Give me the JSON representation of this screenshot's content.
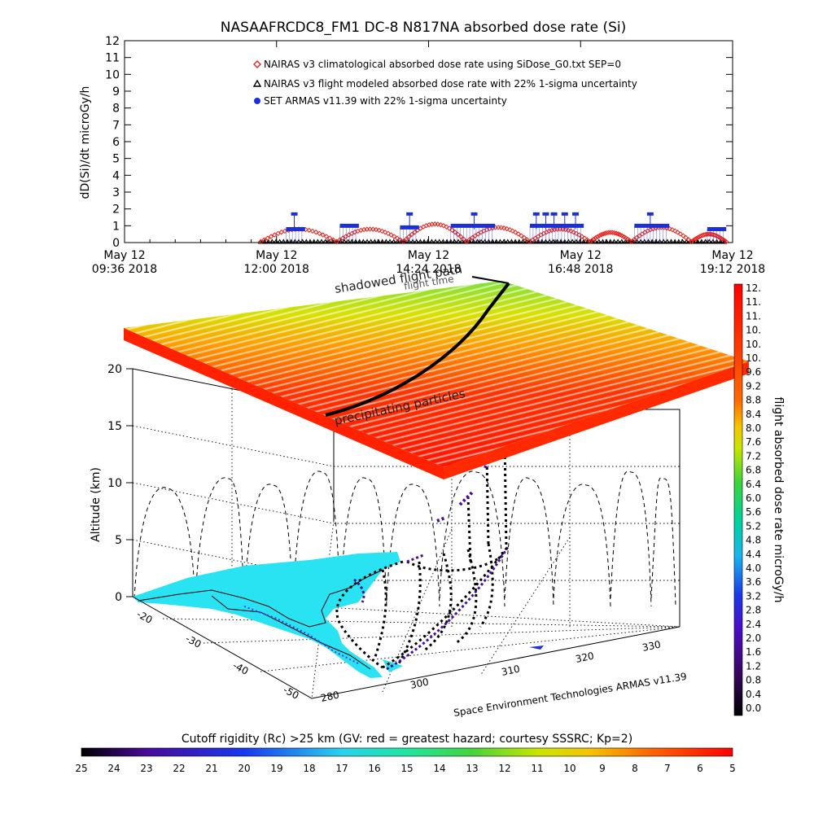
{
  "chart_data": [
    {
      "type": "scatter",
      "title": "NASAAFRCDC8_FM1 DC-8    N817NA absorbed dose rate (Si)",
      "ylabel": "dD(Si)/dt microGy/h",
      "ylim": [
        0,
        12
      ],
      "y_ticks": [
        "0",
        "1",
        "2",
        "3",
        "4",
        "5",
        "6",
        "7",
        "8",
        "9",
        "10",
        "11",
        "12"
      ],
      "x_ticks": [
        {
          "day": "May 12",
          "time": "09:36 2018",
          "h": 9.6
        },
        {
          "day": "May 12",
          "time": "12:00 2018",
          "h": 12.0
        },
        {
          "day": "May 12",
          "time": "14:24 2018",
          "h": 14.4
        },
        {
          "day": "May 12",
          "time": "16:48 2018",
          "h": 16.8
        },
        {
          "day": "May 12",
          "time": "19:12 2018",
          "h": 19.2
        }
      ],
      "xlim_hours": [
        9.6,
        19.2
      ],
      "legend": [
        {
          "label": "NAIRAS v3 climatological absorbed dose rate using SiDose_G0.txt SEP=0",
          "color": "#e8251f",
          "marker": "diamond"
        },
        {
          "label": "NAIRAS v3 flight modeled absorbed dose rate with 22% 1-sigma uncertainty",
          "color": "#000000",
          "marker": "triangle"
        },
        {
          "label": "SET ARMAS v11.39 with 22% 1-sigma uncertainty",
          "color": "#1d2fd6",
          "marker": "circle"
        }
      ],
      "series": [
        {
          "name": "NAIRAS v3 climatological absorbed dose rate using SiDose_G0.txt SEP=0",
          "humps": [
            {
              "start": 11.75,
              "end": 12.95,
              "peak": 0.8
            },
            {
              "start": 12.95,
              "end": 14.0,
              "peak": 0.8
            },
            {
              "start": 14.0,
              "end": 15.0,
              "peak": 1.1
            },
            {
              "start": 15.0,
              "end": 16.0,
              "peak": 0.9
            },
            {
              "start": 16.0,
              "end": 16.95,
              "peak": 0.8
            },
            {
              "start": 16.95,
              "end": 17.6,
              "peak": 0.6
            },
            {
              "start": 17.6,
              "end": 18.55,
              "peak": 0.9
            },
            {
              "start": 18.55,
              "end": 19.1,
              "peak": 0.5
            }
          ]
        },
        {
          "name": "NAIRAS v3 flight modeled absorbed dose rate with 22% 1-sigma uncertainty",
          "start": 11.75,
          "end": 19.1,
          "value": 0.05
        },
        {
          "name": "SET ARMAS v11.39 with 22% 1-sigma uncertainty",
          "segments": [
            {
              "start": 12.15,
              "end": 12.45,
              "value": 0.8
            },
            {
              "start": 13.0,
              "end": 13.3,
              "value": 1.0
            },
            {
              "start": 13.95,
              "end": 14.25,
              "value": 0.9
            },
            {
              "start": 14.75,
              "end": 15.45,
              "value": 1.0
            },
            {
              "start": 16.0,
              "end": 16.85,
              "value": 1.0
            },
            {
              "start": 17.65,
              "end": 18.2,
              "value": 1.0
            },
            {
              "start": 18.8,
              "end": 19.1,
              "value": 0.8
            }
          ],
          "spikes": [
            {
              "h": 12.28,
              "value": 1.7
            },
            {
              "h": 14.1,
              "value": 1.7
            },
            {
              "h": 15.12,
              "value": 1.7
            },
            {
              "h": 16.1,
              "value": 1.7
            },
            {
              "h": 16.25,
              "value": 1.7
            },
            {
              "h": 16.38,
              "value": 1.7
            },
            {
              "h": 16.55,
              "value": 1.7
            },
            {
              "h": 16.72,
              "value": 1.7
            },
            {
              "h": 17.9,
              "value": 1.7
            }
          ]
        }
      ]
    },
    {
      "type": "scatter",
      "ylabel": "Altitude (km)",
      "z_ticks": [
        "0",
        "5",
        "10",
        "15",
        "20"
      ],
      "lat_ticks": [
        "-20",
        "-30",
        "-40",
        "-50"
      ],
      "lon_ticks": [
        "280",
        "300",
        "310",
        "320",
        "330"
      ],
      "annotations": [
        "shadowed flight path",
        "flight time",
        "precipitating particles"
      ],
      "credit": "Space Environment Technologies ARMAS v11.39"
    },
    {
      "type": "heatmap",
      "name": "dose_colorbar",
      "title": "flight absorbed dose rate microGy/h",
      "ticks": [
        "12.",
        "11.",
        "11.",
        "10.",
        "10.",
        "10.",
        "9.6",
        "9.2",
        "8.8",
        "8.4",
        "8.0",
        "7.6",
        "7.2",
        "6.8",
        "6.4",
        "6.0",
        "5.6",
        "5.2",
        "4.8",
        "4.4",
        "4.0",
        "3.6",
        "3.2",
        "2.8",
        "2.4",
        "2.0",
        "1.6",
        "1.2",
        "0.8",
        "0.4",
        "0.0"
      ]
    },
    {
      "type": "heatmap",
      "name": "rigidity_colorbar",
      "title": "Cutoff rigidity (Rc) >25 km (GV: red = greatest hazard; courtesy SSSRC; Kp=2)",
      "ticks": [
        "25",
        "24",
        "23",
        "22",
        "21",
        "20",
        "19",
        "18",
        "17",
        "16",
        "15",
        "14",
        "13",
        "12",
        "11",
        "10",
        "9",
        "8",
        "7",
        "6",
        "5"
      ]
    }
  ]
}
